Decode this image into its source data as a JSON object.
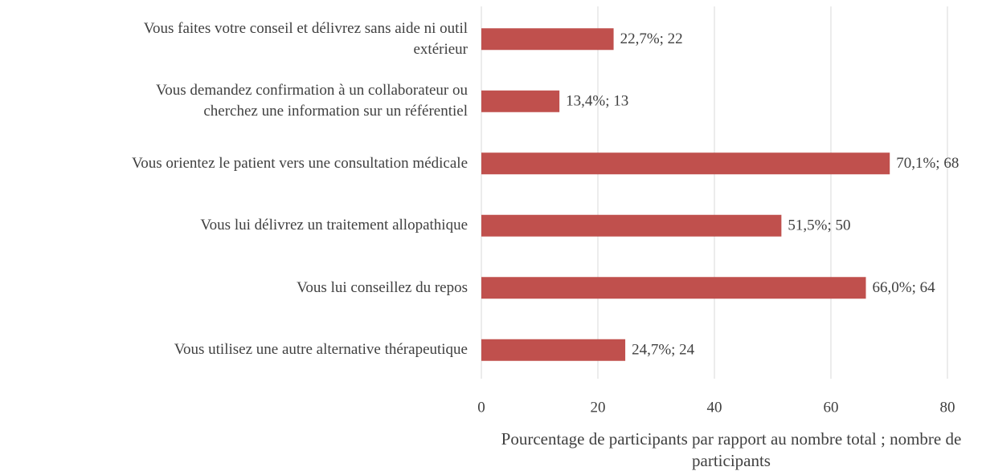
{
  "chart_data": {
    "type": "barh",
    "categories": [
      "Vous faites votre conseil et délivrez sans aide ni outil\nextérieur",
      "Vous demandez confirmation à un collaborateur ou\ncherchez une information sur un référentiel",
      "Vous orientez le patient vers une consultation médicale",
      "Vous lui délivrez un traitement allopathique",
      "Vous lui conseillez du repos",
      "Vous utilisez une autre alternative thérapeutique"
    ],
    "values": [
      22.7,
      13.4,
      70.1,
      51.5,
      66.0,
      24.7
    ],
    "value_labels": [
      "22,7%; 22",
      "13,4%; 13",
      "70,1%; 68",
      "51,5%; 50",
      "66,0%; 64",
      "24,7%; 24"
    ],
    "color": "#c0504d",
    "xlim": [
      0,
      80
    ],
    "xticks": [
      0,
      20,
      40,
      60,
      80
    ],
    "grid": true,
    "x_label": "Pourcentage de participants par rapport au nombre total ; nombre de participants"
  }
}
